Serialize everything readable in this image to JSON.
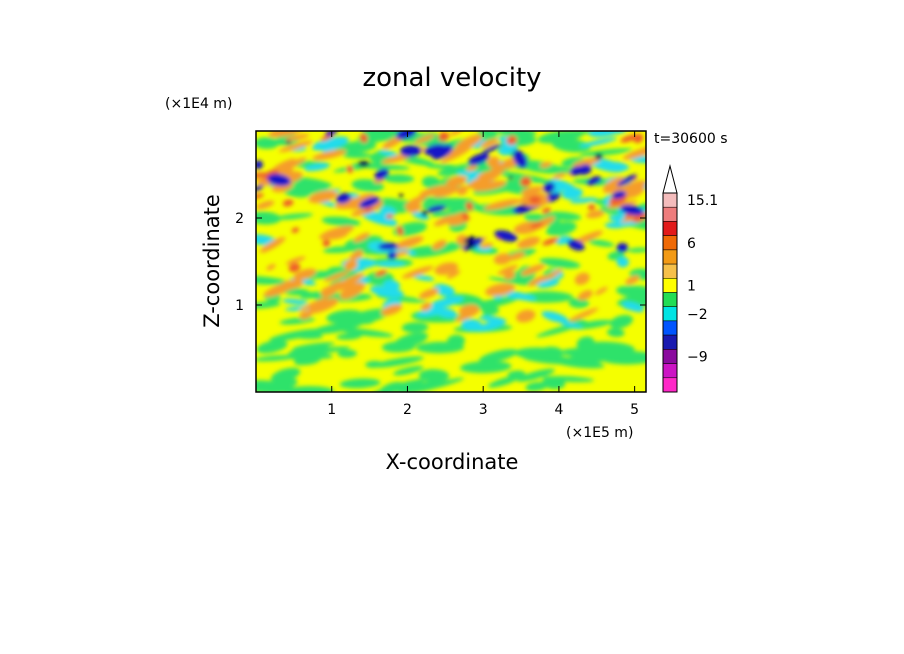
{
  "chart_data": {
    "type": "heatmap",
    "title": "zonal velocity",
    "xlabel": "X-coordinate",
    "ylabel": "Z-coordinate",
    "x_scale_note": "(×1E5 m)",
    "y_scale_note": "(×1E4 m)",
    "time_label": "t=30600 s",
    "xlim": [
      0,
      5.15
    ],
    "ylim": [
      0,
      3.0
    ],
    "x_ticks": [
      "1",
      "2",
      "3",
      "4",
      "5"
    ],
    "y_ticks": [
      "1",
      "2"
    ],
    "grid": false,
    "legend": "colorbar-right",
    "colorbar": {
      "tick_labels": [
        "15.1",
        "6",
        "1",
        "-2",
        "-9"
      ],
      "levels_from_top": [
        {
          "color": "#ffffff",
          "shape": "triangle-open"
        },
        {
          "color": "#f4bcbc"
        },
        {
          "color": "#ee7d7d"
        },
        {
          "color": "#e21a1a"
        },
        {
          "color": "#f06a06"
        },
        {
          "color": "#f29a16"
        },
        {
          "color": "#f5c04a"
        },
        {
          "color": "#ffff00"
        },
        {
          "color": "#22dd55"
        },
        {
          "color": "#00e4e4"
        },
        {
          "color": "#0055ff"
        },
        {
          "color": "#1a1ab0"
        },
        {
          "color": "#8a0a9e"
        },
        {
          "color": "#cc14c4"
        },
        {
          "color": "#ff28c8"
        }
      ]
    },
    "field_colors": {
      "bg": "#f5ff00",
      "green": "#2ee26a",
      "cyan": "#22dcec",
      "orange": "#f59d2a",
      "red": "#ee5f2a",
      "blue": "#1414c8",
      "darkblue": "#00005a"
    }
  }
}
